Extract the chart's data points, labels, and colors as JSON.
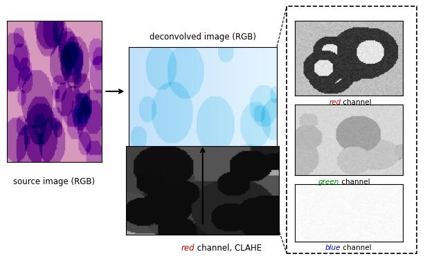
{
  "fig_width": 6.4,
  "fig_height": 3.77,
  "dpi": 100,
  "background": "#ffffff",
  "source_image_label": "source image (RGB)",
  "deconv_image_label": "deconvolved image (RGB)",
  "red_clahe_label_parts": [
    "red",
    " channel, CLAHE"
  ],
  "red_channel_label_parts": [
    "red",
    " channel"
  ],
  "green_channel_label_parts": [
    "green",
    " channel"
  ],
  "blue_channel_label_parts": [
    "blue",
    " channel"
  ],
  "red_color": "#cc0000",
  "green_color": "#008800",
  "blue_color": "#0000cc",
  "black_color": "#000000",
  "label_fontsize": 8.5,
  "small_fontsize": 7.5
}
